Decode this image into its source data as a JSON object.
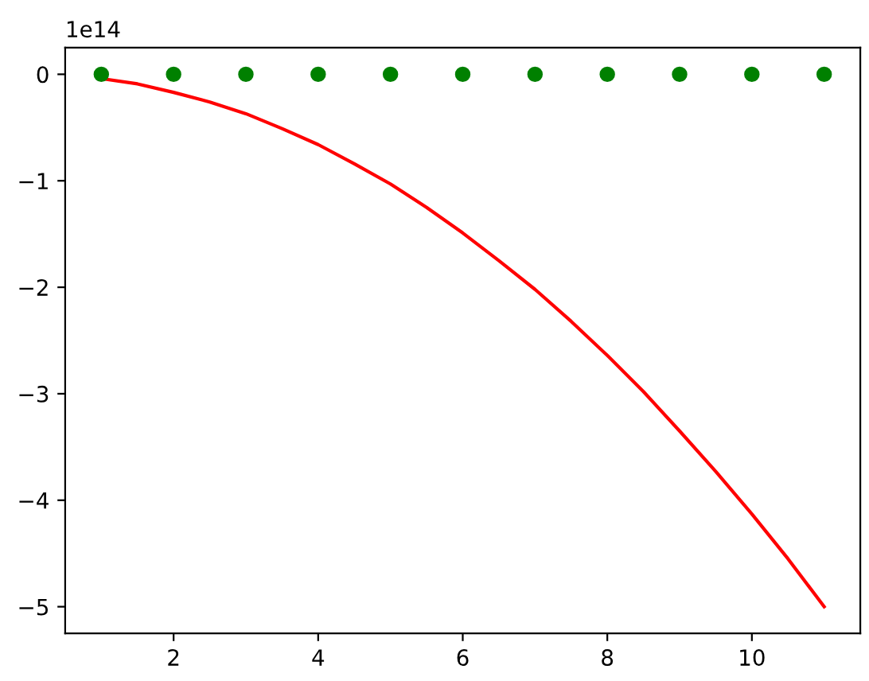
{
  "chart_data": {
    "type": "line",
    "series": [
      {
        "type": "scatter",
        "color": "#008000",
        "marker": "circle",
        "x": [
          1,
          2,
          3,
          4,
          5,
          6,
          7,
          8,
          9,
          10,
          11
        ],
        "values": [
          0,
          0,
          0,
          0,
          0,
          0,
          0,
          0,
          0,
          0,
          0
        ]
      },
      {
        "color": "#ff0000",
        "marker": "none",
        "line_style": "solid",
        "x": [
          1,
          1.5,
          2,
          2.5,
          3,
          3.5,
          4,
          4.5,
          5,
          5.5,
          6,
          6.5,
          7,
          7.5,
          8,
          8.5,
          9,
          9.5,
          10,
          10.5,
          11
        ],
        "values": [
          -0.04,
          -0.09,
          -0.17,
          -0.26,
          -0.37,
          -0.51,
          -0.66,
          -0.84,
          -1.03,
          -1.25,
          -1.49,
          -1.75,
          -2.02,
          -2.32,
          -2.64,
          -2.98,
          -3.35,
          -3.73,
          -4.13,
          -4.55,
          -5.0
        ]
      }
    ],
    "xlim": [
      0.5,
      11.5
    ],
    "xticks": [
      2,
      4,
      6,
      8,
      10
    ],
    "ylim": [
      -5.25,
      0.25
    ],
    "yticks": [
      -5,
      -4,
      -3,
      -2,
      -1,
      0
    ],
    "annotations": [
      "1e14"
    ]
  }
}
